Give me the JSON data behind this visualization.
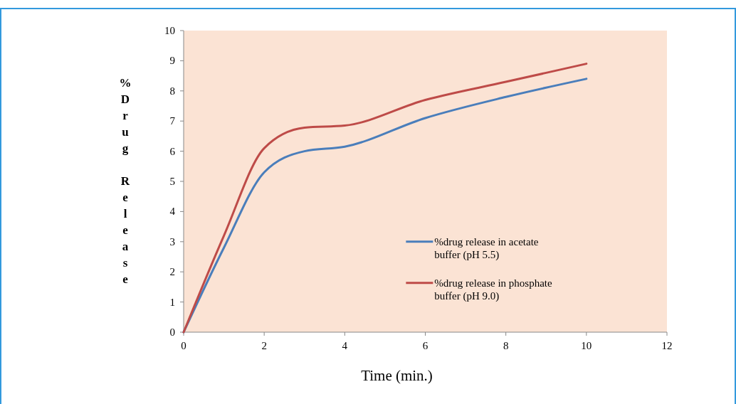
{
  "chart_data": {
    "type": "line",
    "xlabel": "Time (min.)",
    "ylabel": "%Drug Release",
    "xlim": [
      0,
      12
    ],
    "xticks": [
      0,
      2,
      4,
      6,
      8,
      10,
      12
    ],
    "ylim": [
      0,
      10
    ],
    "yticks": [
      0,
      1,
      2,
      3,
      4,
      5,
      6,
      7,
      8,
      9,
      10
    ],
    "grid": false,
    "legend": "bottom right",
    "marker": "none",
    "line_style": "solid",
    "series": [
      {
        "name": "%drug release in  acetate buffer (pH 5.5)",
        "color": "#4a7ebb",
        "x": [
          0,
          1,
          2,
          3,
          4,
          6,
          8,
          10
        ],
        "values": [
          0,
          2.8,
          5.3,
          6.0,
          6.15,
          7.1,
          7.8,
          8.4
        ]
      },
      {
        "name": "%drug release in  phosphate buffer (pH 9.0)",
        "color": "#be4b48",
        "x": [
          0,
          1,
          2,
          3,
          4,
          6,
          8,
          10
        ],
        "values": [
          0,
          3.2,
          6.1,
          6.78,
          6.85,
          7.7,
          8.3,
          8.9
        ]
      }
    ]
  }
}
